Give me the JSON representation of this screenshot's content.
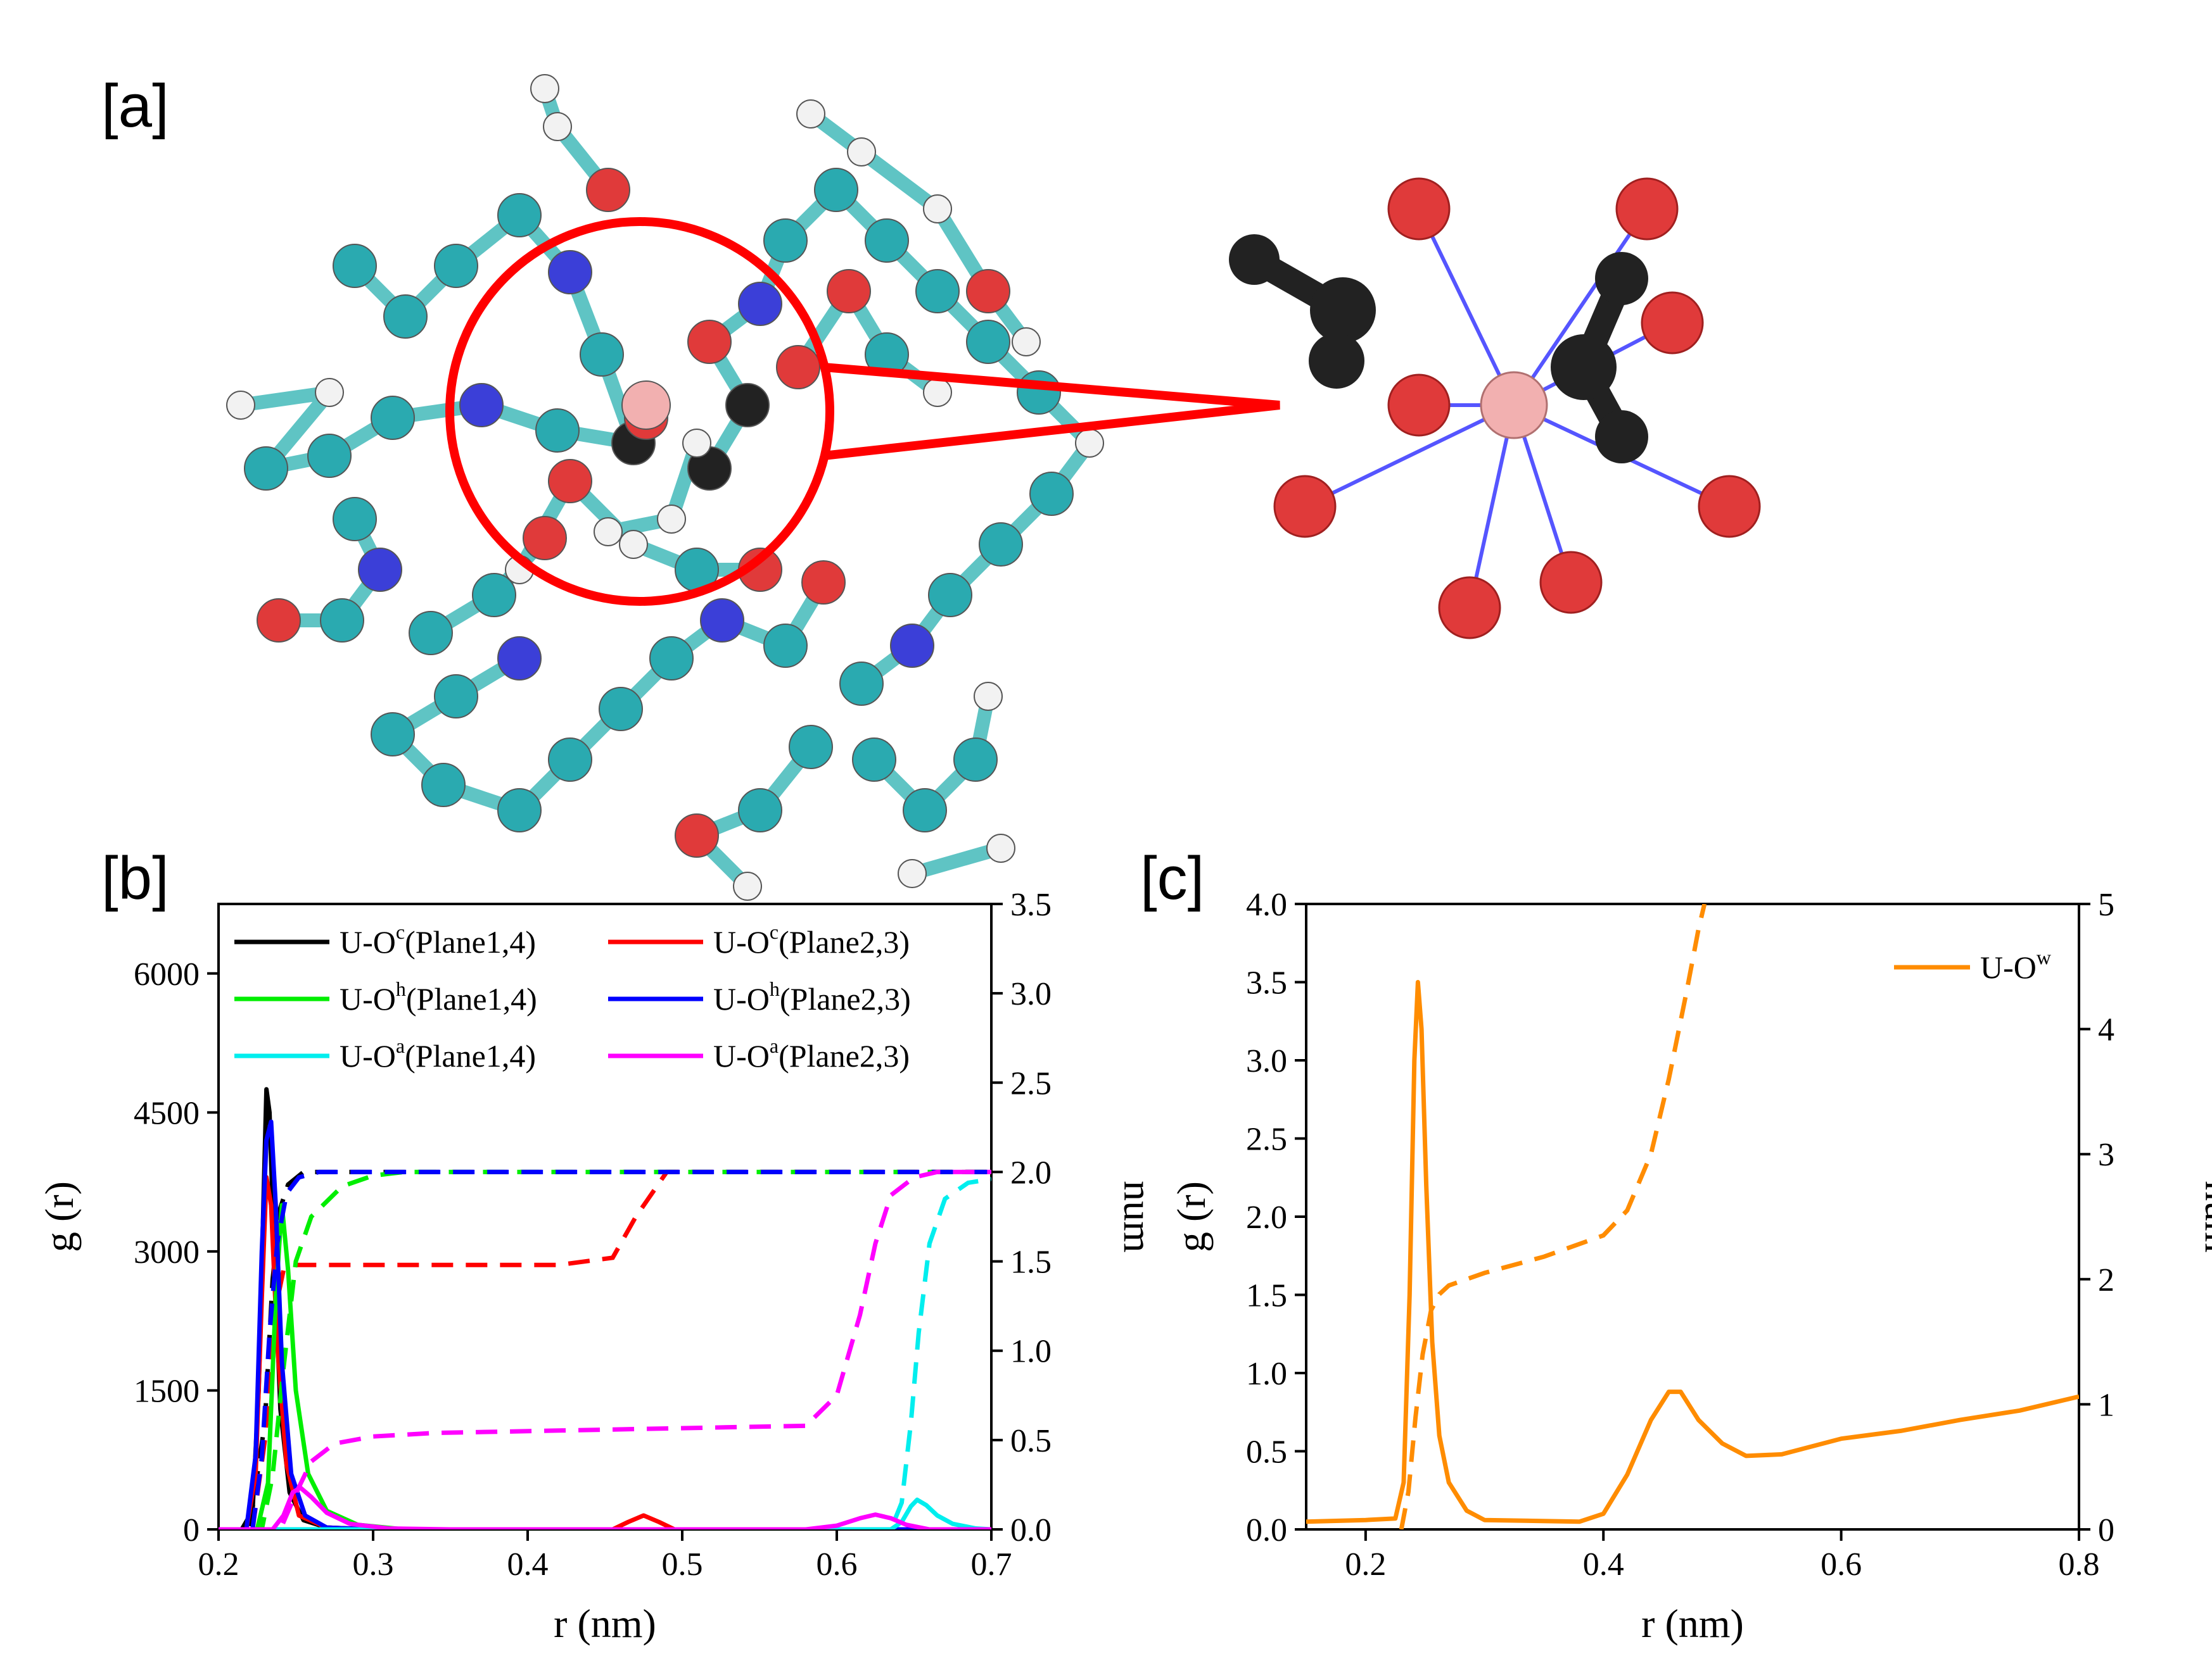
{
  "panel_labels": {
    "a": "[a]",
    "b": "[b]",
    "c": "[c]"
  },
  "atom_colors": {
    "carbon": "#2aaab0",
    "carbon_faded": "#7fd0d0",
    "hydrogen": "#f2f2f2",
    "nitrogen": "#3b3fd8",
    "oxygen": "#e03a3a",
    "uranium": "#f2b0b0",
    "ligand_black": "#222222",
    "bond_blue": "#5555ff",
    "highlight_red": "#ff0000"
  },
  "chart_data": [
    {
      "type": "line",
      "panel": "b",
      "xlabel": "r (nm)",
      "ylabel": "g (r)",
      "y2label": "num",
      "xlim": [
        0.2,
        0.7
      ],
      "ylim": [
        0,
        6750
      ],
      "y2lim": [
        0,
        3.5
      ],
      "xticks": [
        "0.2",
        "0.3",
        "0.4",
        "0.5",
        "0.6",
        "0.7"
      ],
      "yticks": [
        "0",
        "1500",
        "3000",
        "4500",
        "6000"
      ],
      "y2ticks": [
        "0.0",
        "0.5",
        "1.0",
        "1.5",
        "2.0",
        "2.5",
        "3.0",
        "3.5"
      ],
      "legend_placement": "top",
      "series": [
        {
          "name": "U-O",
          "sup": "c",
          "group": "(Plane1,4)",
          "color": "#000000",
          "gr": [
            [
              0.2,
              0
            ],
            [
              0.215,
              0
            ],
            [
              0.222,
              200
            ],
            [
              0.226,
              1500
            ],
            [
              0.229,
              3500
            ],
            [
              0.231,
              4750
            ],
            [
              0.233,
              4500
            ],
            [
              0.236,
              3000
            ],
            [
              0.24,
              1300
            ],
            [
              0.246,
              400
            ],
            [
              0.255,
              100
            ],
            [
              0.27,
              20
            ],
            [
              0.3,
              0
            ],
            [
              0.7,
              0
            ]
          ],
          "num": [
            [
              0.2,
              0
            ],
            [
              0.22,
              0
            ],
            [
              0.23,
              0.6
            ],
            [
              0.235,
              1.4
            ],
            [
              0.24,
              1.8
            ],
            [
              0.245,
              1.93
            ],
            [
              0.255,
              2.0
            ],
            [
              0.7,
              2.0
            ]
          ]
        },
        {
          "name": "U-O",
          "sup": "c",
          "group": "(Plane2,3)",
          "color": "#ff0000",
          "gr": [
            [
              0.2,
              0
            ],
            [
              0.218,
              0
            ],
            [
              0.224,
              600
            ],
            [
              0.228,
              2500
            ],
            [
              0.231,
              3800
            ],
            [
              0.234,
              3500
            ],
            [
              0.238,
              2000
            ],
            [
              0.244,
              700
            ],
            [
              0.252,
              150
            ],
            [
              0.27,
              20
            ],
            [
              0.3,
              0
            ],
            [
              0.455,
              0
            ],
            [
              0.465,
              80
            ],
            [
              0.475,
              150
            ],
            [
              0.485,
              80
            ],
            [
              0.495,
              0
            ],
            [
              0.7,
              0
            ]
          ],
          "num": [
            [
              0.2,
              0
            ],
            [
              0.222,
              0
            ],
            [
              0.23,
              0.5
            ],
            [
              0.236,
              1.2
            ],
            [
              0.242,
              1.45
            ],
            [
              0.25,
              1.48
            ],
            [
              0.42,
              1.48
            ],
            [
              0.455,
              1.52
            ],
            [
              0.47,
              1.75
            ],
            [
              0.49,
              2.0
            ],
            [
              0.7,
              2.0
            ]
          ]
        },
        {
          "name": "U-O",
          "sup": "h",
          "group": "(Plane1,4)",
          "color": "#00ee00",
          "gr": [
            [
              0.2,
              0
            ],
            [
              0.225,
              0
            ],
            [
              0.232,
              500
            ],
            [
              0.237,
              2500
            ],
            [
              0.241,
              3500
            ],
            [
              0.245,
              2800
            ],
            [
              0.25,
              1500
            ],
            [
              0.258,
              600
            ],
            [
              0.27,
              200
            ],
            [
              0.29,
              50
            ],
            [
              0.32,
              0
            ],
            [
              0.7,
              0
            ]
          ],
          "num": [
            [
              0.2,
              0
            ],
            [
              0.228,
              0
            ],
            [
              0.235,
              0.3
            ],
            [
              0.242,
              0.9
            ],
            [
              0.25,
              1.5
            ],
            [
              0.26,
              1.75
            ],
            [
              0.28,
              1.92
            ],
            [
              0.3,
              1.98
            ],
            [
              0.32,
              2.0
            ],
            [
              0.7,
              2.0
            ]
          ]
        },
        {
          "name": "U-O",
          "sup": "h",
          "group": "(Plane2,3)",
          "color": "#0000ff",
          "gr": [
            [
              0.2,
              0
            ],
            [
              0.218,
              0
            ],
            [
              0.224,
              800
            ],
            [
              0.228,
              3000
            ],
            [
              0.231,
              4200
            ],
            [
              0.234,
              4400
            ],
            [
              0.237,
              3500
            ],
            [
              0.241,
              1800
            ],
            [
              0.247,
              600
            ],
            [
              0.256,
              150
            ],
            [
              0.27,
              20
            ],
            [
              0.3,
              0
            ],
            [
              0.7,
              0
            ]
          ],
          "num": [
            [
              0.2,
              0
            ],
            [
              0.222,
              0
            ],
            [
              0.228,
              0.4
            ],
            [
              0.233,
              1.1
            ],
            [
              0.238,
              1.6
            ],
            [
              0.244,
              1.88
            ],
            [
              0.252,
              1.97
            ],
            [
              0.265,
              2.0
            ],
            [
              0.7,
              2.0
            ]
          ]
        },
        {
          "name": "U-O",
          "sup": "a",
          "group": "(Plane1,4)",
          "color": "#00eeee",
          "gr": [
            [
              0.2,
              0
            ],
            [
              0.635,
              0
            ],
            [
              0.642,
              80
            ],
            [
              0.648,
              250
            ],
            [
              0.652,
              320
            ],
            [
              0.658,
              260
            ],
            [
              0.665,
              150
            ],
            [
              0.675,
              60
            ],
            [
              0.69,
              10
            ],
            [
              0.7,
              0
            ]
          ],
          "num": [
            [
              0.2,
              0
            ],
            [
              0.635,
              0
            ],
            [
              0.642,
              0.15
            ],
            [
              0.648,
              0.6
            ],
            [
              0.653,
              1.1
            ],
            [
              0.66,
              1.6
            ],
            [
              0.67,
              1.85
            ],
            [
              0.685,
              1.94
            ],
            [
              0.7,
              1.96
            ]
          ]
        },
        {
          "name": "U-O",
          "sup": "a",
          "group": "(Plane2,3)",
          "color": "#ff00ff",
          "gr": [
            [
              0.2,
              0
            ],
            [
              0.235,
              0
            ],
            [
              0.242,
              150
            ],
            [
              0.248,
              400
            ],
            [
              0.253,
              450
            ],
            [
              0.26,
              350
            ],
            [
              0.27,
              180
            ],
            [
              0.285,
              60
            ],
            [
              0.31,
              10
            ],
            [
              0.35,
              0
            ],
            [
              0.58,
              0
            ],
            [
              0.6,
              40
            ],
            [
              0.615,
              120
            ],
            [
              0.625,
              160
            ],
            [
              0.635,
              120
            ],
            [
              0.645,
              50
            ],
            [
              0.66,
              0
            ],
            [
              0.7,
              0
            ]
          ],
          "num": [
            [
              0.2,
              0
            ],
            [
              0.24,
              0
            ],
            [
              0.25,
              0.2
            ],
            [
              0.26,
              0.38
            ],
            [
              0.275,
              0.48
            ],
            [
              0.3,
              0.52
            ],
            [
              0.34,
              0.54
            ],
            [
              0.58,
              0.58
            ],
            [
              0.6,
              0.75
            ],
            [
              0.615,
              1.2
            ],
            [
              0.625,
              1.6
            ],
            [
              0.635,
              1.87
            ],
            [
              0.65,
              1.97
            ],
            [
              0.665,
              2.0
            ],
            [
              0.7,
              2.0
            ]
          ]
        }
      ]
    },
    {
      "type": "line",
      "panel": "c",
      "xlabel": "r (nm)",
      "ylabel": "g (r)",
      "y2label": "num",
      "xlim": [
        0.15,
        0.8
      ],
      "ylim": [
        0,
        4.0
      ],
      "y2lim": [
        0,
        5
      ],
      "xticks": [
        "0.2",
        "0.4",
        "0.6",
        "0.8"
      ],
      "xtick_values": [
        0.2,
        0.4,
        0.6,
        0.8
      ],
      "yticks": [
        "0.0",
        "0.5",
        "1.0",
        "1.5",
        "2.0",
        "2.5",
        "3.0",
        "3.5",
        "4.0"
      ],
      "y2ticks": [
        "0",
        "1",
        "2",
        "3",
        "4",
        "5"
      ],
      "legend_placement": "top-right",
      "series": [
        {
          "name": "U-O",
          "sup": "w",
          "color": "#ff8c00",
          "gr": [
            [
              0.15,
              0.05
            ],
            [
              0.2,
              0.06
            ],
            [
              0.225,
              0.07
            ],
            [
              0.232,
              0.3
            ],
            [
              0.237,
              1.5
            ],
            [
              0.241,
              3.0
            ],
            [
              0.244,
              3.5
            ],
            [
              0.247,
              3.2
            ],
            [
              0.251,
              2.2
            ],
            [
              0.256,
              1.2
            ],
            [
              0.262,
              0.6
            ],
            [
              0.27,
              0.3
            ],
            [
              0.285,
              0.12
            ],
            [
              0.3,
              0.06
            ],
            [
              0.38,
              0.05
            ],
            [
              0.4,
              0.1
            ],
            [
              0.42,
              0.35
            ],
            [
              0.44,
              0.7
            ],
            [
              0.455,
              0.88
            ],
            [
              0.465,
              0.88
            ],
            [
              0.48,
              0.7
            ],
            [
              0.5,
              0.55
            ],
            [
              0.52,
              0.47
            ],
            [
              0.55,
              0.48
            ],
            [
              0.6,
              0.58
            ],
            [
              0.65,
              0.63
            ],
            [
              0.7,
              0.7
            ],
            [
              0.75,
              0.76
            ],
            [
              0.8,
              0.85
            ]
          ],
          "num": [
            [
              0.23,
              0
            ],
            [
              0.236,
              0.3
            ],
            [
              0.242,
              0.9
            ],
            [
              0.248,
              1.4
            ],
            [
              0.255,
              1.75
            ],
            [
              0.262,
              1.88
            ],
            [
              0.27,
              1.95
            ],
            [
              0.3,
              2.05
            ],
            [
              0.35,
              2.18
            ],
            [
              0.4,
              2.35
            ],
            [
              0.42,
              2.55
            ],
            [
              0.44,
              3.0
            ],
            [
              0.455,
              3.6
            ],
            [
              0.47,
              4.3
            ],
            [
              0.48,
              4.8
            ],
            [
              0.485,
              5.0
            ]
          ]
        }
      ]
    }
  ]
}
